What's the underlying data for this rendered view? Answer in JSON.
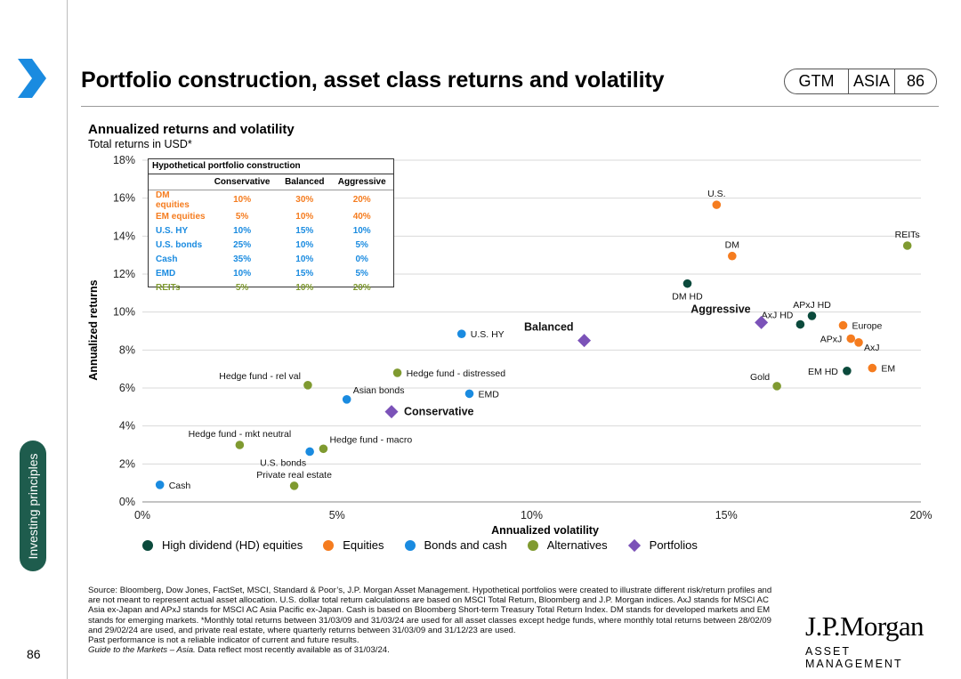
{
  "header": {
    "title": "Portfolio construction, asset class returns and volatility",
    "badge": [
      "GTM",
      "ASIA",
      "86"
    ]
  },
  "sidebar": {
    "section_label": "Investing principles",
    "page_number": "86"
  },
  "chart_header": {
    "title": "Annualized returns and volatility",
    "subtitle": "Total returns in USD*"
  },
  "colors": {
    "hd": "#0b4a3c",
    "equities": "#f57c1f",
    "bonds": "#1a8be0",
    "alternatives": "#7f9a30",
    "portfolios": "#7b52b8",
    "sidebar_tab": "#1e5c4d",
    "chevron": "#1a8be0"
  },
  "table": {
    "title": "Hypothetical portfolio construction",
    "columns": [
      "Conservative",
      "Balanced",
      "Aggressive"
    ],
    "rows": [
      {
        "name": "DM equities",
        "color": "#f57c1f",
        "values": [
          "10%",
          "30%",
          "20%"
        ]
      },
      {
        "name": "EM equities",
        "color": "#f57c1f",
        "values": [
          "5%",
          "10%",
          "40%"
        ]
      },
      {
        "name": "U.S. HY",
        "color": "#1a8be0",
        "values": [
          "10%",
          "15%",
          "10%"
        ]
      },
      {
        "name": "U.S. bonds",
        "color": "#1a8be0",
        "values": [
          "25%",
          "10%",
          "5%"
        ]
      },
      {
        "name": "Cash",
        "color": "#1a8be0",
        "values": [
          "35%",
          "10%",
          "0%"
        ]
      },
      {
        "name": "EMD",
        "color": "#1a8be0",
        "values": [
          "10%",
          "15%",
          "5%"
        ]
      },
      {
        "name": "REITs",
        "color": "#7f9a30",
        "values": [
          "5%",
          "10%",
          "20%"
        ]
      }
    ]
  },
  "chart_data": {
    "type": "scatter",
    "title": "Annualized returns and volatility",
    "subtitle": "Total returns in USD*",
    "xlabel": "Annualized volatility",
    "ylabel": "Annualized returns",
    "xlim": [
      0,
      20
    ],
    "ylim": [
      0,
      18
    ],
    "x_ticks": [
      0,
      5,
      10,
      15,
      20
    ],
    "x_tick_labels": [
      "0%",
      "5%",
      "10%",
      "15%",
      "20%"
    ],
    "y_ticks": [
      0,
      2,
      4,
      6,
      8,
      10,
      12,
      14,
      16,
      18
    ],
    "y_tick_labels": [
      "0%",
      "2%",
      "4%",
      "6%",
      "8%",
      "10%",
      "12%",
      "14%",
      "16%",
      "18%"
    ],
    "grid": true,
    "legend_position": "bottom",
    "series": [
      {
        "name": "High dividend (HD) equities",
        "key": "hd",
        "marker": "circle",
        "points": [
          {
            "label": "DM HD",
            "x": 14.0,
            "y": 11.5,
            "anchor": "below"
          },
          {
            "label": "APxJ HD",
            "x": 17.2,
            "y": 9.8,
            "anchor": "above"
          },
          {
            "label": "AxJ HD",
            "x": 16.9,
            "y": 9.35,
            "anchor": "upper-left"
          },
          {
            "label": "EM HD",
            "x": 18.1,
            "y": 6.9,
            "anchor": "left"
          }
        ]
      },
      {
        "name": "Equities",
        "key": "equities",
        "marker": "circle",
        "points": [
          {
            "label": "U.S.",
            "x": 14.75,
            "y": 15.65,
            "anchor": "above"
          },
          {
            "label": "DM",
            "x": 15.15,
            "y": 12.95,
            "anchor": "above"
          },
          {
            "label": "Europe",
            "x": 18.0,
            "y": 9.3,
            "anchor": "right"
          },
          {
            "label": "APxJ",
            "x": 18.2,
            "y": 8.6,
            "anchor": "left"
          },
          {
            "label": "AxJ",
            "x": 18.4,
            "y": 8.4,
            "anchor": "lower-right"
          },
          {
            "label": "EM",
            "x": 18.75,
            "y": 7.05,
            "anchor": "right"
          }
        ]
      },
      {
        "name": "Bonds and cash",
        "key": "bonds",
        "marker": "circle",
        "points": [
          {
            "label": "U.S. HY",
            "x": 8.2,
            "y": 8.85,
            "anchor": "right"
          },
          {
            "label": "EMD",
            "x": 8.4,
            "y": 5.7,
            "anchor": "right"
          },
          {
            "label": "Asian bonds",
            "x": 5.25,
            "y": 5.4,
            "anchor": "upper-right"
          },
          {
            "label": "U.S. bonds",
            "x": 4.3,
            "y": 2.65,
            "anchor": "lower-left"
          },
          {
            "label": "Cash",
            "x": 0.45,
            "y": 0.9,
            "anchor": "right"
          }
        ]
      },
      {
        "name": "Alternatives",
        "key": "alternatives",
        "marker": "circle",
        "points": [
          {
            "label": "REITs",
            "x": 19.65,
            "y": 13.5,
            "anchor": "above"
          },
          {
            "label": "Gold",
            "x": 16.3,
            "y": 6.1,
            "anchor": "upper-left"
          },
          {
            "label": "Hedge fund - distressed",
            "x": 6.55,
            "y": 6.8,
            "anchor": "right"
          },
          {
            "label": "Hedge fund - rel val",
            "x": 4.25,
            "y": 6.15,
            "anchor": "upper-left"
          },
          {
            "label": "Hedge fund - mkt neutral",
            "x": 2.5,
            "y": 3.0,
            "anchor": "above"
          },
          {
            "label": "Hedge fund - macro",
            "x": 4.65,
            "y": 2.8,
            "anchor": "upper-right"
          },
          {
            "label": "Private real estate",
            "x": 3.9,
            "y": 0.85,
            "anchor": "above"
          }
        ]
      },
      {
        "name": "Portfolios",
        "key": "portfolios",
        "marker": "diamond",
        "points": [
          {
            "label": "Balanced",
            "x": 11.35,
            "y": 8.5,
            "anchor": "upper-left",
            "bold": true
          },
          {
            "label": "Aggressive",
            "x": 15.9,
            "y": 9.45,
            "anchor": "upper-left",
            "bold": true
          },
          {
            "label": "Conservative",
            "x": 6.4,
            "y": 4.75,
            "anchor": "right",
            "bold": true
          }
        ]
      }
    ]
  },
  "legend": [
    {
      "label": "High dividend (HD) equities",
      "key": "hd",
      "shape": "circle"
    },
    {
      "label": "Equities",
      "key": "equities",
      "shape": "circle"
    },
    {
      "label": "Bonds and cash",
      "key": "bonds",
      "shape": "circle"
    },
    {
      "label": "Alternatives",
      "key": "alternatives",
      "shape": "circle"
    },
    {
      "label": "Portfolios",
      "key": "portfolios",
      "shape": "diamond"
    }
  ],
  "source": {
    "text": "Source: Bloomberg, Dow Jones, FactSet, MSCI, Standard & Poor’s, J.P. Morgan Asset Management. Hypothetical portfolios were created to illustrate different risk/return profiles and are not meant to represent actual asset allocation. U.S. dollar total return calculations are based on MSCI Total Return, Bloomberg and J.P. Morgan indices. AxJ stands for MSCI AC Asia ex-Japan and APxJ stands for MSCI AC Asia Pacific ex-Japan. Cash is based on Bloomberg Short-term Treasury Total Return Index. DM stands for developed markets and EM stands for emerging markets. *Monthly total returns between 31/03/09 and 31/03/24 are used for all asset classes except hedge funds, where monthly total returns between 28/02/09 and 29/02/24 are used, and private real estate, where quarterly returns between 31/03/09 and 31/12/23 are used.",
    "disclaimer": "Past performance is not a reliable indicator of current and future results.",
    "guide": "Guide to the Markets – Asia.",
    "date_note": " Data reflect most recently available as of 31/03/24."
  },
  "logo": {
    "name": "J.P.Morgan",
    "tagline": "ASSET MANAGEMENT"
  }
}
